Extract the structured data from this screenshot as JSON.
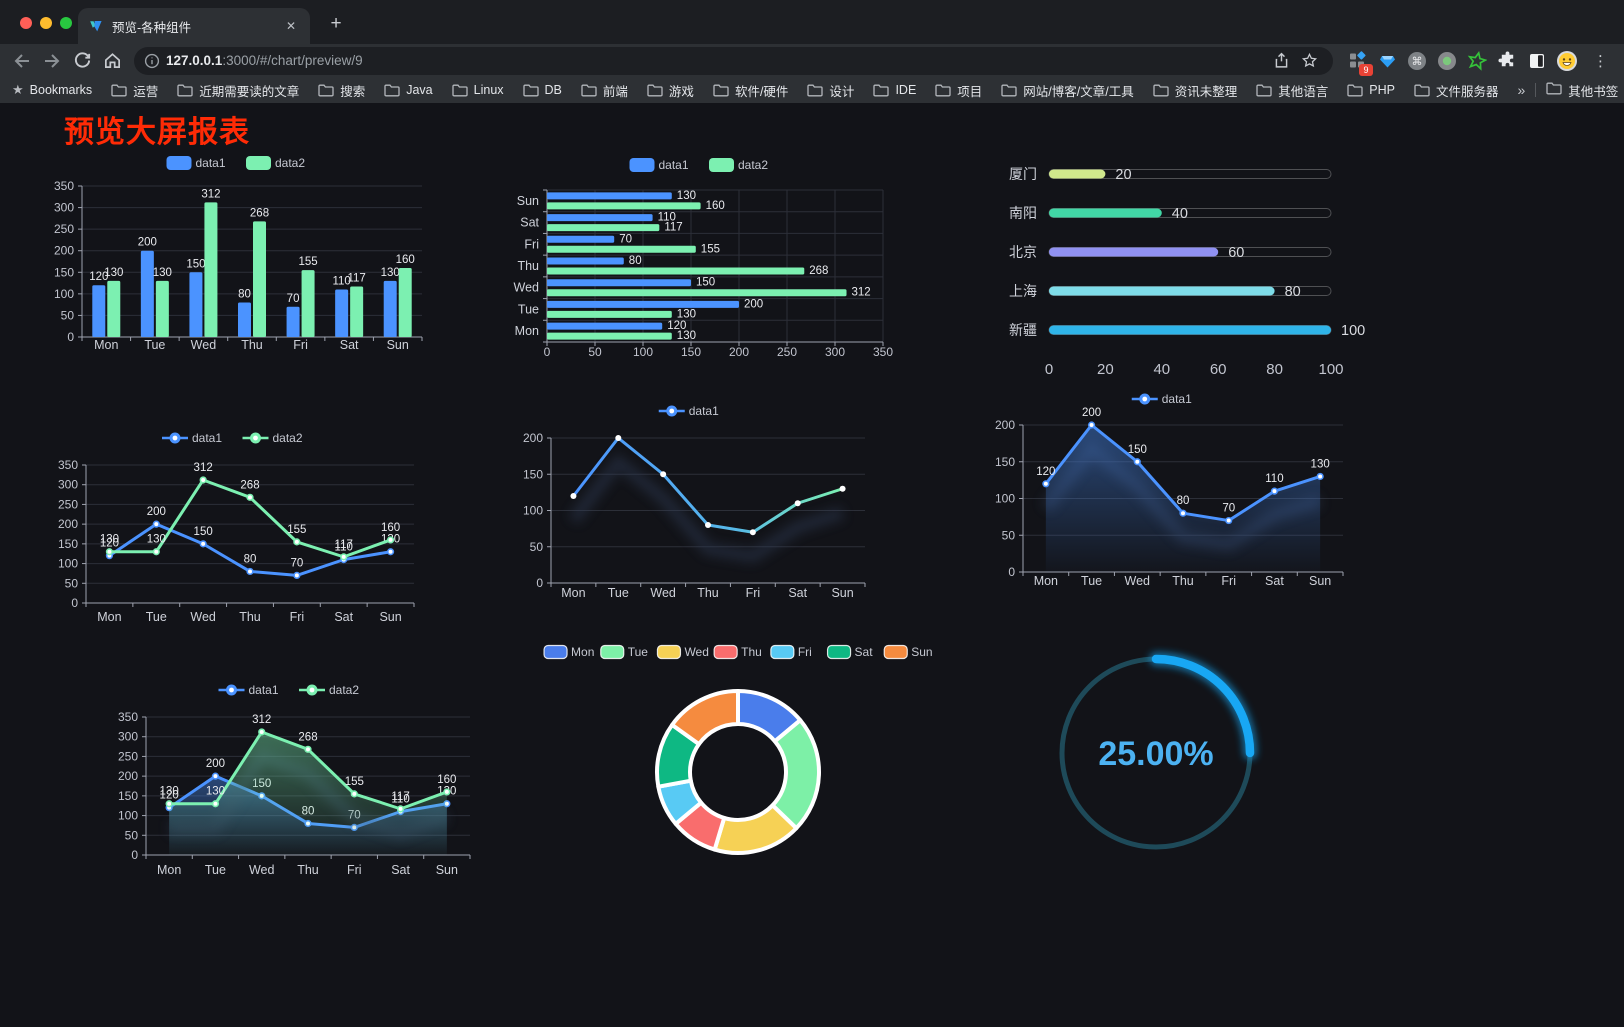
{
  "browser": {
    "traffic_lights": [
      "#ff5f57",
      "#febc2e",
      "#28c840"
    ],
    "tab_title": "预览-各种组件",
    "close_glyph": "✕",
    "new_tab_glyph": "+",
    "url_host": "127.0.0.1",
    "url_rest": ":3000/#/chart/preview/9",
    "extension_badge": "9",
    "icons": {
      "menu": "⋮",
      "cmd": "⌘",
      "bookmarks_star": "★",
      "info": "i"
    },
    "bookmarks_label": "Bookmarks",
    "bookmark_folders": [
      "运营",
      "近期需要读的文章",
      "搜索",
      "Java",
      "Linux",
      "DB",
      "前端",
      "游戏",
      "软件/硬件",
      "设计",
      "IDE",
      "项目",
      "网站/博客/文章/工具",
      "资讯未整理",
      "其他语言",
      "PHP",
      "文件服务器"
    ],
    "overflow_glyph": "»",
    "other_bookmarks": "其他书签"
  },
  "page": {
    "title": "预览大屏报表",
    "title_color": "#ff2b06"
  },
  "chart_data": [
    {
      "id": "grouped-bar",
      "type": "bar",
      "categories": [
        "Mon",
        "Tue",
        "Wed",
        "Thu",
        "Fri",
        "Sat",
        "Sun"
      ],
      "series": [
        {
          "name": "data1",
          "color": "#4b93ff",
          "values": [
            120,
            200,
            150,
            80,
            70,
            110,
            130
          ]
        },
        {
          "name": "data2",
          "color": "#7cf0b1",
          "values": [
            130,
            130,
            312,
            268,
            155,
            117,
            160
          ]
        }
      ],
      "ylim": [
        0,
        350
      ],
      "ystep": 50,
      "value_labels": true,
      "legend_position": "top",
      "grid": true
    },
    {
      "id": "horizontal-bar",
      "type": "hbar",
      "categories_top_to_bottom": [
        "Sun",
        "Sat",
        "Fri",
        "Thu",
        "Wed",
        "Tue",
        "Mon"
      ],
      "series": [
        {
          "name": "data1",
          "color": "#4b93ff",
          "values": [
            130,
            110,
            70,
            80,
            150,
            200,
            120
          ]
        },
        {
          "name": "data2",
          "color": "#7cf0b1",
          "values": [
            160,
            117,
            155,
            268,
            312,
            130,
            130
          ]
        }
      ],
      "xlim": [
        0,
        350
      ],
      "xstep": 50,
      "value_labels": true,
      "legend_position": "top",
      "grid": true
    },
    {
      "id": "progress-bars",
      "type": "progress",
      "rows": [
        {
          "label": "厦门",
          "value": 20,
          "color": "#d0e88c"
        },
        {
          "label": "南阳",
          "value": 40,
          "color": "#41d7a6"
        },
        {
          "label": "北京",
          "value": 60,
          "color": "#9091f1"
        },
        {
          "label": "上海",
          "value": 80,
          "color": "#7edce8"
        },
        {
          "label": "新疆",
          "value": 100,
          "color": "#2fb4e8"
        }
      ],
      "xlim": [
        0,
        100
      ],
      "xticks": [
        0,
        20,
        40,
        60,
        80,
        100
      ]
    },
    {
      "id": "line-two-series",
      "type": "line",
      "categories": [
        "Mon",
        "Tue",
        "Wed",
        "Thu",
        "Fri",
        "Sat",
        "Sun"
      ],
      "series": [
        {
          "name": "data1",
          "color": "#4b93ff",
          "values": [
            120,
            200,
            150,
            80,
            70,
            110,
            130
          ]
        },
        {
          "name": "data2",
          "color": "#7cf0b1",
          "values": [
            130,
            130,
            312,
            268,
            155,
            117,
            160
          ]
        }
      ],
      "ylim": [
        0,
        350
      ],
      "ystep": 50,
      "value_labels": true,
      "legend_position": "top",
      "grid": true
    },
    {
      "id": "line-gradient",
      "type": "line",
      "categories": [
        "Mon",
        "Tue",
        "Wed",
        "Thu",
        "Fri",
        "Sat",
        "Sun"
      ],
      "series": [
        {
          "name": "data1",
          "gradient": [
            "#4b93ff",
            "#57b9e8",
            "#7cf0b1"
          ],
          "values": [
            120,
            200,
            150,
            80,
            70,
            110,
            130
          ],
          "echo": true
        }
      ],
      "ylim": [
        0,
        200
      ],
      "ystep": 50,
      "value_labels": false,
      "legend_position": "top",
      "grid": true
    },
    {
      "id": "line-area",
      "type": "line",
      "categories": [
        "Mon",
        "Tue",
        "Wed",
        "Thu",
        "Fri",
        "Sat",
        "Sun"
      ],
      "series": [
        {
          "name": "data1",
          "color": "#4b93ff",
          "values": [
            120,
            200,
            150,
            80,
            70,
            110,
            130
          ],
          "area": true,
          "echo": true
        }
      ],
      "ylim": [
        0,
        200
      ],
      "ystep": 50,
      "value_labels": true,
      "legend_position": "top",
      "grid": true
    },
    {
      "id": "line-area-two-series",
      "type": "line",
      "categories": [
        "Mon",
        "Tue",
        "Wed",
        "Thu",
        "Fri",
        "Sat",
        "Sun"
      ],
      "series": [
        {
          "name": "data1",
          "color": "#4b93ff",
          "values": [
            120,
            200,
            150,
            80,
            70,
            110,
            130
          ],
          "area": true
        },
        {
          "name": "data2",
          "color": "#7cf0b1",
          "values": [
            130,
            130,
            312,
            268,
            155,
            117,
            160
          ],
          "area": true,
          "echo": true
        }
      ],
      "ylim": [
        0,
        350
      ],
      "ystep": 50,
      "value_labels": true,
      "legend_position": "top",
      "grid": true
    },
    {
      "id": "donut",
      "type": "donut",
      "slices": [
        {
          "label": "Mon",
          "value": 120,
          "color": "#4a7deb"
        },
        {
          "label": "Tue",
          "value": 200,
          "color": "#7df0a7"
        },
        {
          "label": "Wed",
          "value": 150,
          "color": "#f6d155"
        },
        {
          "label": "Thu",
          "value": 80,
          "color": "#f96d6d"
        },
        {
          "label": "Fri",
          "value": 70,
          "color": "#58caf4"
        },
        {
          "label": "Sat",
          "value": 110,
          "color": "#0eb883"
        },
        {
          "label": "Sun",
          "value": 130,
          "color": "#f58b3f"
        }
      ],
      "legend_position": "top"
    },
    {
      "id": "gauge",
      "type": "gauge",
      "percent": 25,
      "value_text": "25.00%",
      "arc_color": "#18a7f4",
      "track_color": "#1e4a59",
      "text_color": "#4cb2f2"
    }
  ]
}
